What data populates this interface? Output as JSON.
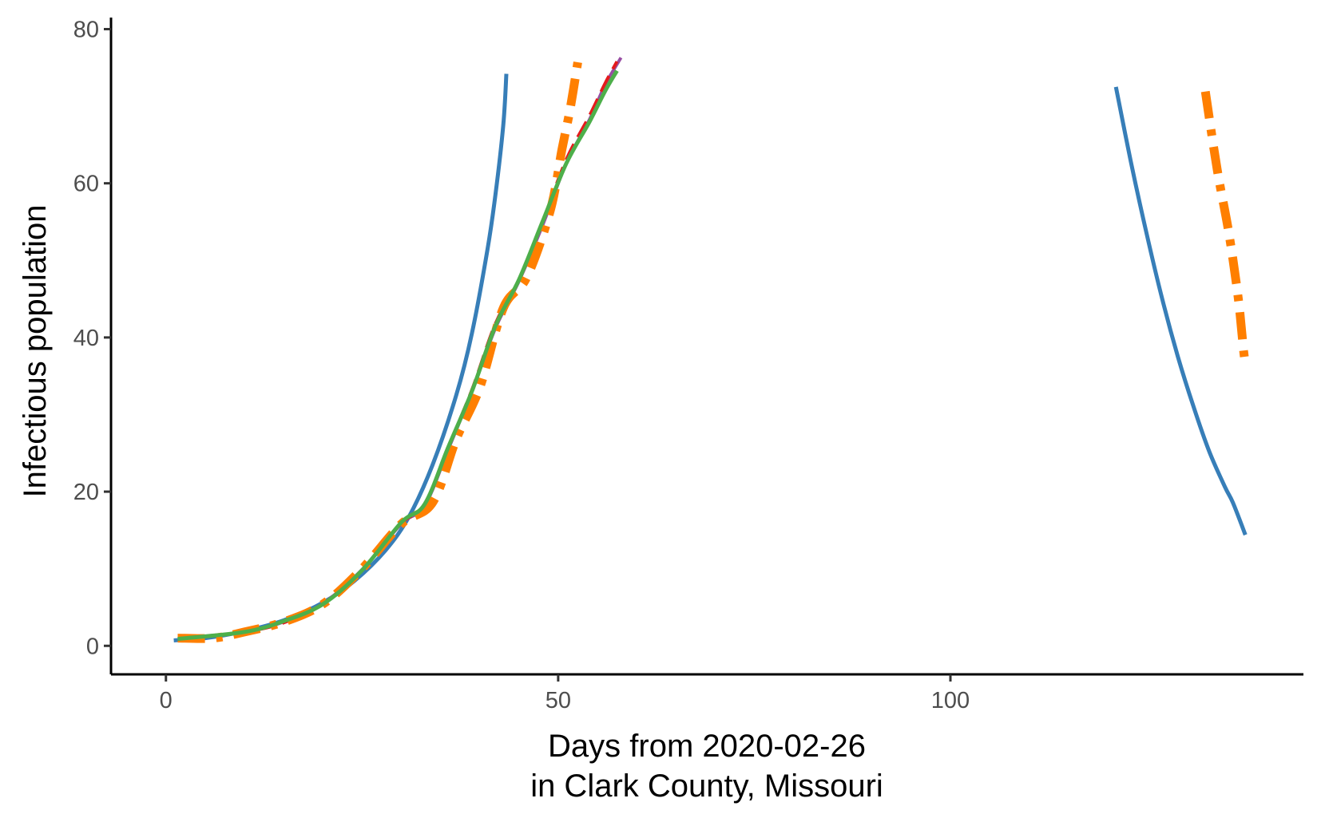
{
  "chart_data": {
    "type": "line",
    "title": "",
    "xlabel_line1": "Days from 2020-02-26",
    "xlabel_line2": "in Clark County, Missouri",
    "ylabel": "Infectious population",
    "xlim": [
      -7,
      145
    ],
    "ylim": [
      -3.7,
      81.5
    ],
    "x_ticks": [
      0,
      50,
      100
    ],
    "y_ticks": [
      0,
      20,
      40,
      60,
      80
    ],
    "grid": false,
    "legend": "none",
    "series": [
      {
        "name": "series-blue",
        "color": "#377eb8",
        "width": 5,
        "dash": "",
        "segments": [
          [
            [
              1,
              0.7
            ],
            [
              5,
              1.0
            ],
            [
              10,
              1.9
            ],
            [
              15,
              3.3
            ],
            [
              20,
              5.6
            ],
            [
              24,
              8.4
            ],
            [
              28,
              12.4
            ],
            [
              31,
              16.8
            ],
            [
              34,
              23.5
            ],
            [
              37,
              32.5
            ],
            [
              39,
              40.5
            ],
            [
              41,
              51.5
            ],
            [
              42,
              58.5
            ],
            [
              43,
              67.5
            ],
            [
              43.4,
              74.2
            ]
          ],
          [
            [
              121.1,
              72.5
            ],
            [
              123,
              62.8
            ],
            [
              125,
              53.5
            ],
            [
              127,
              45.0
            ],
            [
              129,
              37.5
            ],
            [
              131,
              31.0
            ],
            [
              133,
              25.2
            ],
            [
              135,
              20.6
            ],
            [
              136,
              18.6
            ],
            [
              137.6,
              14.4
            ]
          ]
        ]
      },
      {
        "name": "series-purple",
        "color": "#984ea3",
        "width": 4,
        "dash": "",
        "segments": [
          [
            [
              2,
              1.0
            ],
            [
              10,
              1.8
            ],
            [
              15,
              3.1
            ],
            [
              20,
              5.5
            ],
            [
              25,
              9.9
            ],
            [
              30,
              15.8
            ],
            [
              33,
              18.2
            ],
            [
              36,
              25.5
            ],
            [
              39,
              33.0
            ],
            [
              42,
              41.2
            ],
            [
              45,
              47.3
            ],
            [
              48,
              54.5
            ],
            [
              51,
              62.5
            ],
            [
              54,
              68.3
            ],
            [
              56,
              72.8
            ],
            [
              58,
              76.3
            ]
          ]
        ]
      },
      {
        "name": "series-red",
        "color": "#e41a1c",
        "width": 4,
        "dash": "22 10",
        "segments": [
          [
            [
              2,
              0.9
            ],
            [
              10,
              1.8
            ],
            [
              15,
              3.0
            ],
            [
              20,
              5.4
            ],
            [
              25,
              9.8
            ],
            [
              30,
              15.9
            ],
            [
              33,
              18.2
            ],
            [
              36,
              25.8
            ],
            [
              39,
              33.2
            ],
            [
              42,
              41.8
            ],
            [
              45,
              47.4
            ],
            [
              48,
              55.0
            ],
            [
              51,
              63.0
            ],
            [
              54,
              68.8
            ],
            [
              56,
              73.0
            ],
            [
              57.5,
              75.8
            ]
          ]
        ]
      },
      {
        "name": "series-orange",
        "color": "#ff7f00",
        "width": 11,
        "dash": "34 14 8 14",
        "segments": [
          [
            [
              1.5,
              1.0
            ],
            [
              6,
              1.0
            ],
            [
              10,
              1.8
            ],
            [
              15,
              3.1
            ],
            [
              20,
              5.4
            ],
            [
              25,
              10.0
            ],
            [
              30,
              15.8
            ],
            [
              34,
              18.6
            ],
            [
              37,
              26.8
            ],
            [
              40,
              33.5
            ],
            [
              43,
              43.8
            ],
            [
              46,
              47.8
            ],
            [
              49,
              56.5
            ],
            [
              50.5,
              64.5
            ],
            [
              51.5,
              69.5
            ],
            [
              52.5,
              75.7
            ]
          ],
          [
            [
              132.5,
              71.9
            ],
            [
              134,
              61.8
            ],
            [
              135.5,
              53.5
            ],
            [
              136.7,
              45.0
            ],
            [
              137.4,
              38.0
            ],
            [
              137.7,
              36.3
            ]
          ]
        ]
      },
      {
        "name": "series-green",
        "color": "#4daf4a",
        "width": 5,
        "dash": "",
        "segments": [
          [
            [
              1.5,
              0.9
            ],
            [
              10,
              1.8
            ],
            [
              15,
              3.2
            ],
            [
              20,
              5.4
            ],
            [
              25,
              9.8
            ],
            [
              30,
              16.0
            ],
            [
              33,
              18.4
            ],
            [
              36,
              25.8
            ],
            [
              39,
              33.0
            ],
            [
              42,
              41.5
            ],
            [
              45,
              47.5
            ],
            [
              48,
              55.0
            ],
            [
              51,
              62.5
            ],
            [
              54,
              68.0
            ],
            [
              56,
              72.0
            ],
            [
              57.5,
              74.6
            ]
          ]
        ]
      }
    ]
  }
}
